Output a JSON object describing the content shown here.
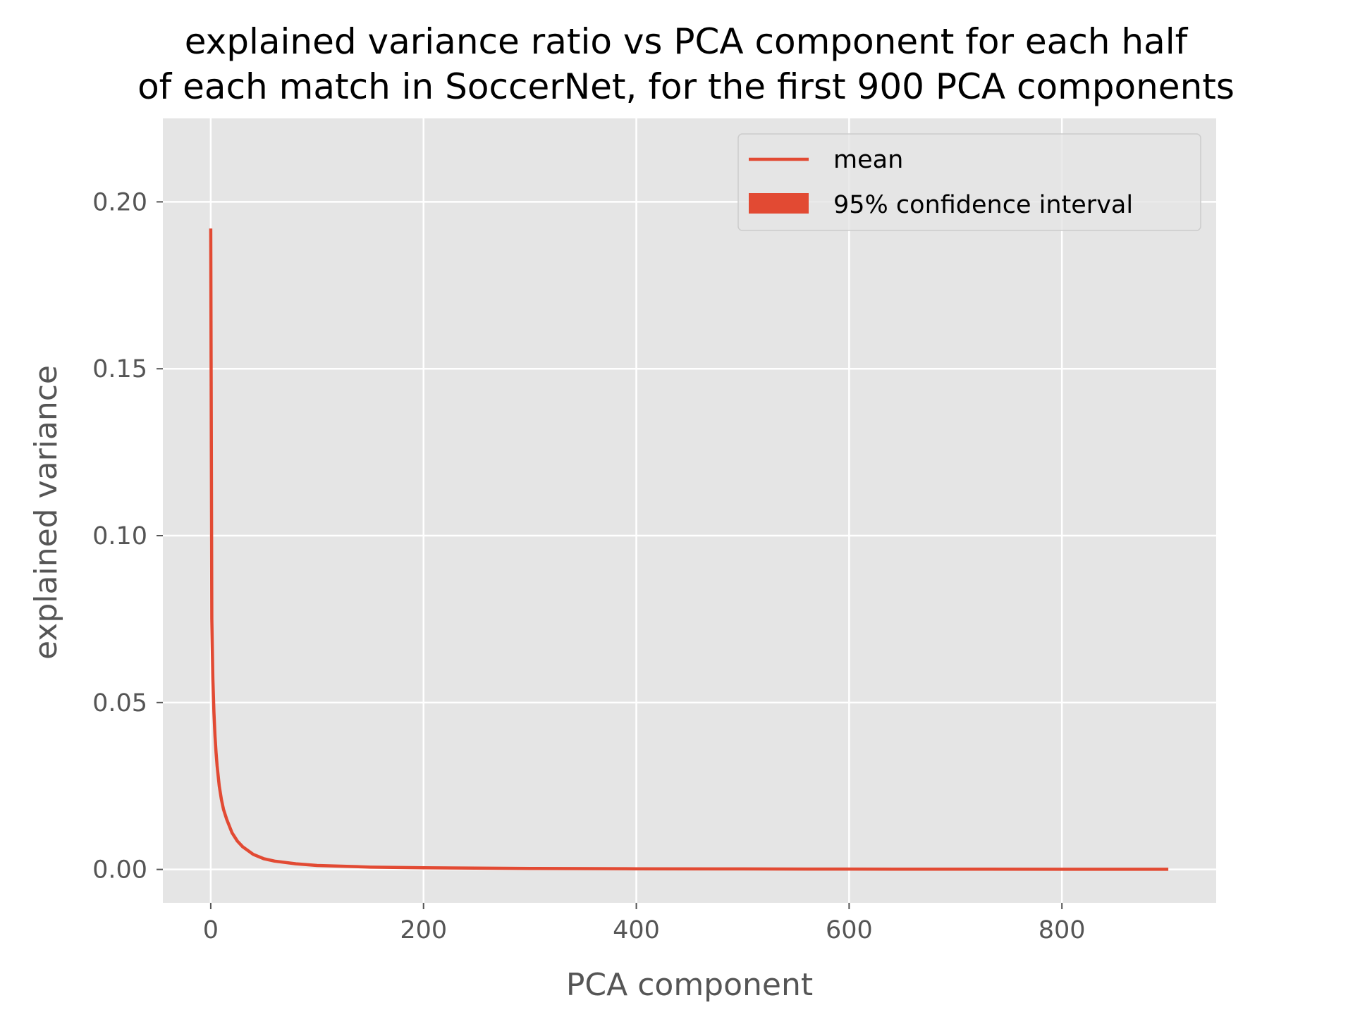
{
  "chart_data": {
    "type": "line",
    "title": "explained variance ratio vs PCA component for each half\nof each match in SoccerNet, for the first 900 PCA components",
    "title_lines": [
      "explained variance ratio vs PCA component for each half",
      "of each match in SoccerNet, for the first 900 PCA components"
    ],
    "xlabel": "PCA component",
    "ylabel": "explained variance",
    "xlim": [
      -45,
      945
    ],
    "ylim": [
      -0.01,
      0.225
    ],
    "x_ticks": [
      0,
      200,
      400,
      600,
      800
    ],
    "x_tick_labels": [
      "0",
      "200",
      "400",
      "600",
      "800"
    ],
    "y_ticks": [
      0.0,
      0.05,
      0.1,
      0.15,
      0.2
    ],
    "y_tick_labels": [
      "0.00",
      "0.05",
      "0.10",
      "0.15",
      "0.20"
    ],
    "grid": true,
    "legend_position": "top-right",
    "legend": [
      "mean",
      "95% confidence interval"
    ],
    "colors": {
      "series": "#E24A33",
      "plot_background": "#E5E5E5",
      "grid": "#FFFFFF",
      "text": "#555555"
    },
    "series": [
      {
        "name": "mean",
        "x": [
          0,
          1,
          2,
          3,
          4,
          5,
          6,
          7,
          8,
          10,
          12,
          15,
          20,
          25,
          30,
          40,
          50,
          60,
          80,
          100,
          150,
          200,
          300,
          400,
          500,
          600,
          700,
          800,
          900
        ],
        "y": [
          0.192,
          0.075,
          0.057,
          0.047,
          0.04,
          0.035,
          0.031,
          0.028,
          0.025,
          0.021,
          0.018,
          0.015,
          0.011,
          0.0085,
          0.0068,
          0.0045,
          0.0032,
          0.0025,
          0.0017,
          0.0012,
          0.0007,
          0.0005,
          0.0003,
          0.0002,
          0.00015,
          0.0001,
          8e-05,
          6e-05,
          5e-05
        ]
      },
      {
        "name": "95% confidence interval",
        "x": [
          0,
          1,
          2,
          3,
          4,
          5,
          6,
          7,
          8,
          10,
          12,
          15,
          20,
          25,
          30,
          40,
          50,
          60,
          80,
          100,
          150,
          200,
          300,
          400,
          500,
          600,
          700,
          800,
          900
        ],
        "lower": [
          0.1915,
          0.0745,
          0.0567,
          0.0468,
          0.0398,
          0.0348,
          0.0308,
          0.0279,
          0.0249,
          0.0209,
          0.0179,
          0.0149,
          0.0109,
          0.0084,
          0.0067,
          0.0044,
          0.0031,
          0.0024,
          0.0016,
          0.0011,
          0.0006,
          0.0004,
          0.0002,
          0.00015,
          0.0001,
          8e-05,
          6e-05,
          4e-05,
          3e-05
        ],
        "upper": [
          0.1925,
          0.0755,
          0.0573,
          0.0472,
          0.0402,
          0.0352,
          0.0312,
          0.0281,
          0.0251,
          0.0211,
          0.0181,
          0.0151,
          0.0111,
          0.0086,
          0.0069,
          0.0046,
          0.0033,
          0.0026,
          0.0018,
          0.0013,
          0.0008,
          0.0006,
          0.0004,
          0.00025,
          0.0002,
          0.00012,
          0.0001,
          8e-05,
          7e-05
        ]
      }
    ]
  }
}
